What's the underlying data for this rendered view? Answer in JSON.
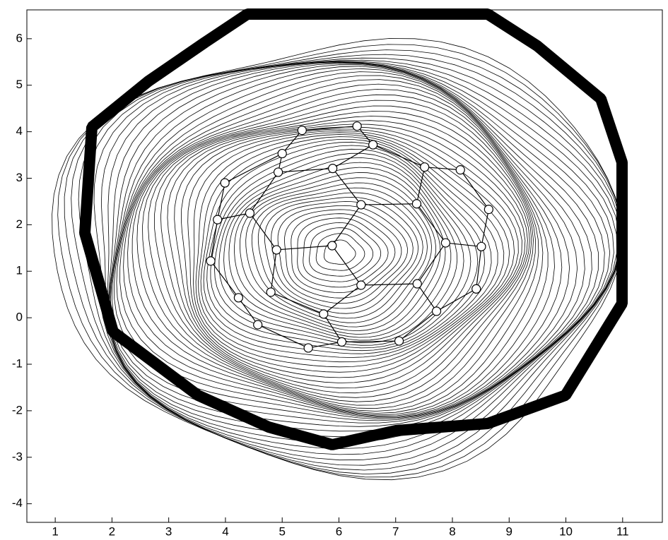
{
  "chart_data": {
    "type": "contour",
    "xlim": [
      0.5,
      11.7
    ],
    "ylim": [
      -4.4,
      6.62
    ],
    "xticks": [
      1,
      2,
      3,
      4,
      5,
      6,
      7,
      8,
      9,
      10,
      11
    ],
    "yticks": [
      -4,
      -3,
      -2,
      -1,
      0,
      1,
      2,
      3,
      4,
      5,
      6
    ],
    "marker_color": "#000000",
    "x": [
      5.35,
      6.32,
      6.6,
      5.0,
      5.89,
      4.93,
      3.99,
      7.51,
      8.14,
      3.86,
      4.43,
      6.39,
      7.37,
      8.64,
      4.9,
      5.88,
      7.88,
      8.51,
      3.74,
      6.39,
      7.38,
      8.42,
      4.23,
      4.8,
      7.72,
      5.73,
      4.57,
      6.05,
      7.06,
      5.46
    ],
    "y": [
      4.03,
      4.12,
      3.72,
      3.53,
      3.21,
      3.13,
      2.9,
      3.24,
      3.18,
      2.11,
      2.25,
      2.43,
      2.45,
      2.33,
      1.46,
      1.55,
      1.61,
      1.53,
      1.22,
      0.7,
      0.73,
      0.62,
      0.43,
      0.55,
      0.14,
      0.08,
      -0.15,
      -0.52,
      -0.5,
      -0.65
    ],
    "edges": [
      [
        0,
        1
      ],
      [
        1,
        2
      ],
      [
        0,
        3
      ],
      [
        3,
        5
      ],
      [
        3,
        6
      ],
      [
        6,
        9
      ],
      [
        5,
        4
      ],
      [
        4,
        2
      ],
      [
        4,
        11
      ],
      [
        2,
        7
      ],
      [
        7,
        8
      ],
      [
        7,
        12
      ],
      [
        11,
        12
      ],
      [
        11,
        15
      ],
      [
        15,
        14
      ],
      [
        14,
        10
      ],
      [
        10,
        5
      ],
      [
        10,
        9
      ],
      [
        9,
        18
      ],
      [
        18,
        22
      ],
      [
        14,
        23
      ],
      [
        15,
        19
      ],
      [
        19,
        20
      ],
      [
        19,
        25
      ],
      [
        25,
        27
      ],
      [
        27,
        29
      ],
      [
        29,
        26
      ],
      [
        26,
        22
      ],
      [
        23,
        25
      ],
      [
        20,
        24
      ],
      [
        24,
        28
      ],
      [
        28,
        27
      ],
      [
        20,
        16
      ],
      [
        16,
        12
      ],
      [
        16,
        17
      ],
      [
        17,
        13
      ],
      [
        13,
        8
      ],
      [
        17,
        21
      ],
      [
        21,
        24
      ]
    ]
  }
}
